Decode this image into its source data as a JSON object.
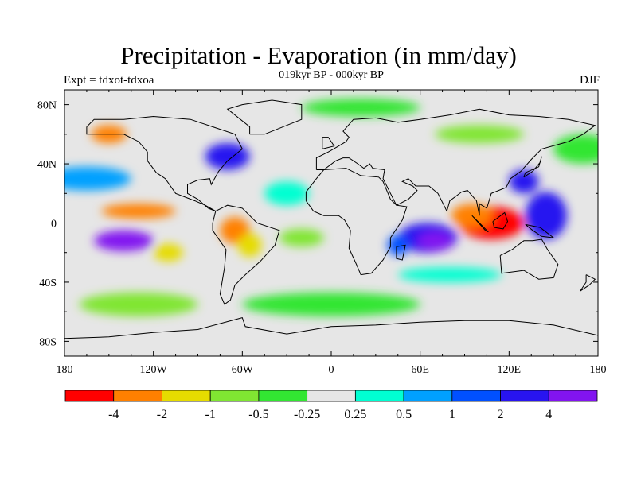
{
  "title": "Precipitation - Evaporation (in mm/day)",
  "subtitle": "019kyr BP - 000kyr BP",
  "experiment": "Expt = tdxot-tdxoa",
  "season": "DJF",
  "map": {
    "lon_ticks": [
      "180",
      "120W",
      "60W",
      "0",
      "60E",
      "120E",
      "180"
    ],
    "lat_ticks": [
      "80N",
      "40N",
      "0",
      "40S",
      "80S"
    ],
    "background_color": "#e6e6e6",
    "coastline_color": "#000000"
  },
  "colorbar": {
    "colors": [
      "#ff0000",
      "#ff8000",
      "#e6dc00",
      "#80e632",
      "#32e632",
      "#e6e6e6",
      "#00ffd2",
      "#00a0ff",
      "#0050ff",
      "#2814f0",
      "#8214f0"
    ],
    "labels": [
      "-4",
      "-2",
      "-1",
      "-0.5",
      "-0.25",
      "0.25",
      "0.5",
      "1",
      "2",
      "4"
    ]
  },
  "anomaly_regions": [
    {
      "name": "indonesia-dry",
      "lon": 108,
      "lat": 0,
      "rlon": 22,
      "rlat": 11,
      "cls": 0
    },
    {
      "name": "indonesia-dry-2",
      "lon": 95,
      "lat": 5,
      "rlon": 14,
      "rlat": 8,
      "cls": 1
    },
    {
      "name": "indian-ocean-wet",
      "lon": 65,
      "lat": -10,
      "rlon": 20,
      "rlat": 10,
      "cls": 9
    },
    {
      "name": "indian-ocean-wet-2",
      "lon": 70,
      "lat": -12,
      "rlon": 12,
      "rlat": 6,
      "cls": 10
    },
    {
      "name": "west-pacific-wet",
      "lon": 145,
      "lat": 5,
      "rlon": 14,
      "rlat": 16,
      "cls": 9
    },
    {
      "name": "east-pacific-dry",
      "lon": -130,
      "lat": 8,
      "rlon": 25,
      "rlat": 5,
      "cls": 1
    },
    {
      "name": "south-pacific-wet",
      "lon": -140,
      "lat": -12,
      "rlon": 20,
      "rlat": 7,
      "cls": 10
    },
    {
      "name": "north-atlantic-wet",
      "lon": -70,
      "lat": 45,
      "rlon": 15,
      "rlat": 9,
      "cls": 9
    },
    {
      "name": "north-pacific-wet",
      "lon": -165,
      "lat": 30,
      "rlon": 30,
      "rlat": 8,
      "cls": 7
    },
    {
      "name": "amazon-dry",
      "lon": -65,
      "lat": -5,
      "rlon": 10,
      "rlat": 9,
      "cls": 1
    },
    {
      "name": "brazil-dry",
      "lon": -55,
      "lat": -15,
      "rlon": 8,
      "rlat": 8,
      "cls": 2
    },
    {
      "name": "alaska-dry",
      "lon": -150,
      "lat": 60,
      "rlon": 12,
      "rlat": 6,
      "cls": 1
    },
    {
      "name": "south-indian-wet",
      "lon": 80,
      "lat": -35,
      "rlon": 35,
      "rlat": 5,
      "cls": 6
    },
    {
      "name": "southern-ocean-green",
      "lon": 0,
      "lat": -55,
      "rlon": 60,
      "rlat": 8,
      "cls": 4
    },
    {
      "name": "south-pacific-green",
      "lon": -130,
      "lat": -55,
      "rlon": 40,
      "rlat": 8,
      "cls": 3
    },
    {
      "name": "north-pacific-green",
      "lon": 170,
      "lat": 50,
      "rlon": 20,
      "rlat": 10,
      "cls": 4
    },
    {
      "name": "arctic-green",
      "lon": 20,
      "lat": 78,
      "rlon": 40,
      "rlat": 6,
      "cls": 4
    },
    {
      "name": "siberia-green",
      "lon": 100,
      "lat": 60,
      "rlon": 30,
      "rlat": 6,
      "cls": 3
    },
    {
      "name": "atlantic-cyan",
      "lon": -30,
      "lat": 20,
      "rlon": 15,
      "rlat": 8,
      "cls": 6
    },
    {
      "name": "southeast-pacific-yellow",
      "lon": -110,
      "lat": -20,
      "rlon": 10,
      "rlat": 6,
      "cls": 2
    },
    {
      "name": "east-china-wet",
      "lon": 130,
      "lat": 28,
      "rlon": 10,
      "rlat": 8,
      "cls": 9
    },
    {
      "name": "south-atlantic-green",
      "lon": -20,
      "lat": -10,
      "rlon": 15,
      "rlat": 6,
      "cls": 3
    },
    {
      "name": "madagascar-wet",
      "lon": 45,
      "lat": -15,
      "rlon": 7,
      "rlat": 7,
      "cls": 8
    }
  ]
}
